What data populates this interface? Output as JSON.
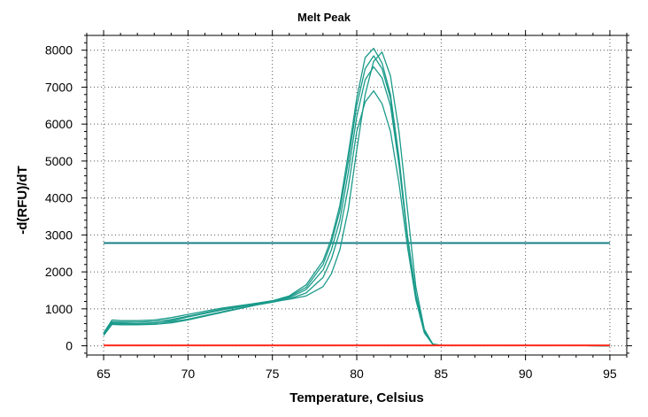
{
  "colors": {
    "melt_curve": "#1a9a8a",
    "threshold": "#1a7f86",
    "baseline": "#ff2a1a",
    "grid": "#555555",
    "axis": "#000000"
  },
  "chart_data": {
    "type": "line",
    "title": "Melt Peak",
    "xlabel": "Temperature, Celsius",
    "ylabel": "-d(RFU)/dT",
    "xlim": [
      64,
      96
    ],
    "ylim": [
      -250,
      8400
    ],
    "xticks": [
      65,
      70,
      75,
      80,
      85,
      90,
      95
    ],
    "yticks": [
      0,
      1000,
      2000,
      3000,
      4000,
      5000,
      6000,
      7000,
      8000
    ],
    "xtick_labels": [
      "65",
      "70",
      "75",
      "80",
      "85",
      "90",
      "95"
    ],
    "ytick_labels": [
      "0",
      "1000",
      "2000",
      "3000",
      "4000",
      "5000",
      "6000",
      "7000",
      "8000"
    ],
    "grid": true,
    "threshold": {
      "y": 2780,
      "x": [
        65,
        95
      ]
    },
    "series": [
      {
        "color": "melt_curve",
        "x": [
          65,
          65.5,
          66,
          67,
          68,
          69,
          70,
          72,
          74,
          75,
          76,
          77,
          78,
          78.5,
          79,
          79.5,
          80,
          80.5,
          81,
          81.5,
          82,
          82.5,
          83,
          83.5,
          84,
          84.5,
          85,
          86,
          88,
          90,
          92,
          95
        ],
        "y": [
          350,
          700,
          680,
          680,
          700,
          760,
          850,
          1020,
          1150,
          1220,
          1350,
          1650,
          2300,
          2900,
          3800,
          5200,
          6700,
          7800,
          8050,
          7650,
          6800,
          5100,
          3000,
          1400,
          400,
          50,
          10,
          10,
          10,
          10,
          10,
          0
        ]
      },
      {
        "color": "melt_curve",
        "x": [
          65,
          65.5,
          66,
          67,
          68,
          69,
          70,
          72,
          74,
          75,
          76,
          77,
          78,
          78.5,
          79,
          79.5,
          80,
          80.5,
          81,
          81.5,
          82,
          82.5,
          83,
          83.5,
          84,
          84.5,
          85,
          86,
          88,
          90,
          92,
          95
        ],
        "y": [
          300,
          600,
          590,
          590,
          610,
          680,
          780,
          970,
          1130,
          1200,
          1300,
          1520,
          2050,
          2600,
          3400,
          4700,
          6200,
          7200,
          7550,
          7250,
          6500,
          4900,
          2950,
          1350,
          380,
          40,
          10,
          10,
          10,
          10,
          10,
          0
        ]
      },
      {
        "color": "melt_curve",
        "x": [
          65,
          65.5,
          66,
          67,
          68,
          69,
          70,
          72,
          74,
          75,
          76,
          77,
          78,
          78.5,
          79,
          79.5,
          80,
          80.5,
          81,
          81.5,
          82,
          82.5,
          83,
          83.5,
          84,
          84.5,
          85,
          86,
          88,
          90,
          92,
          95
        ],
        "y": [
          280,
          580,
          570,
          570,
          580,
          620,
          700,
          900,
          1100,
          1180,
          1270,
          1430,
          1850,
          2350,
          3100,
          4300,
          5800,
          6600,
          6900,
          6550,
          5800,
          4400,
          2700,
          1250,
          350,
          40,
          10,
          10,
          10,
          10,
          10,
          0
        ]
      },
      {
        "color": "melt_curve",
        "x": [
          65,
          65.5,
          66,
          67,
          68,
          69,
          70,
          72,
          74,
          75,
          76,
          77,
          78,
          78.5,
          79,
          79.5,
          80,
          80.5,
          81,
          81.5,
          82,
          82.5,
          83,
          83.5,
          84,
          84.5,
          85,
          86,
          88,
          90,
          92,
          95
        ],
        "y": [
          320,
          620,
          610,
          600,
          620,
          650,
          720,
          920,
          1110,
          1190,
          1260,
          1350,
          1600,
          1950,
          2600,
          3700,
          5300,
          6800,
          7700,
          7950,
          7300,
          5800,
          3700,
          1600,
          450,
          50,
          10,
          10,
          10,
          10,
          10,
          0
        ]
      },
      {
        "color": "melt_curve",
        "x": [
          65,
          65.5,
          66,
          67,
          68,
          69,
          70,
          72,
          74,
          75,
          76,
          77,
          78,
          78.5,
          79,
          79.5,
          80,
          80.5,
          81,
          81.5,
          82,
          82.5,
          83,
          83.5,
          84,
          84.5,
          85,
          86,
          88,
          90,
          92,
          95
        ],
        "y": [
          340,
          650,
          640,
          640,
          660,
          710,
          800,
          990,
          1140,
          1210,
          1330,
          1580,
          2200,
          2800,
          3650,
          5000,
          6500,
          7500,
          7850,
          7500,
          6700,
          5000,
          2950,
          1380,
          390,
          45,
          10,
          10,
          10,
          10,
          10,
          0
        ]
      },
      {
        "color": "baseline",
        "x": [
          65,
          70,
          75,
          80,
          85,
          90,
          95
        ],
        "y": [
          10,
          10,
          10,
          10,
          10,
          10,
          10
        ]
      }
    ]
  }
}
